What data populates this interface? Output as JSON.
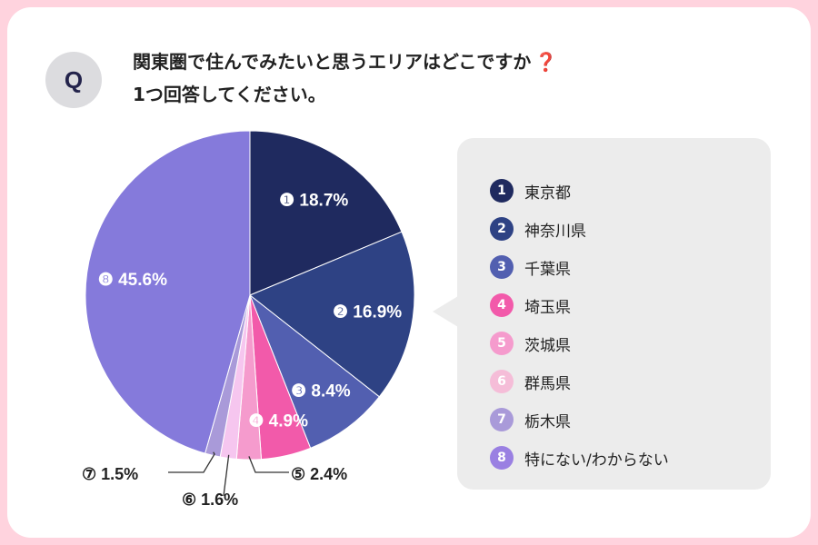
{
  "question": {
    "badge": "Q",
    "line1": "関東圏で住んでみたいと思うエリアはどこですか",
    "qmark": "❓",
    "line2": "1つ回答してください。"
  },
  "colors": {
    "background": "#ffd3de",
    "panel": "#ececec"
  },
  "chart_data": {
    "type": "pie",
    "direction": "clockwise from top",
    "series": [
      {
        "num": "1",
        "marker": "❶",
        "name": "東京都",
        "value": 18.7,
        "label": "18.7%",
        "color": "#1f2a5f",
        "legend_color": "#1f2a5f"
      },
      {
        "num": "2",
        "marker": "❷",
        "name": "神奈川県",
        "value": 16.9,
        "label": "16.9%",
        "color": "#2e4284",
        "legend_color": "#2e4284"
      },
      {
        "num": "3",
        "marker": "❸",
        "name": "千葉県",
        "value": 8.4,
        "label": "8.4%",
        "color": "#525fb0",
        "legend_color": "#525fb0"
      },
      {
        "num": "4",
        "marker": "❹",
        "name": "埼玉県",
        "value": 4.9,
        "label": "4.9%",
        "color": "#f25aaa",
        "legend_color": "#f25aaa"
      },
      {
        "num": "5",
        "marker": "⑤",
        "name": "茨城県",
        "value": 2.4,
        "label": "2.4%",
        "color": "#f59bcd",
        "legend_color": "#f59bcd"
      },
      {
        "num": "6",
        "marker": "⑥",
        "name": "群馬県",
        "value": 1.6,
        "label": "1.6%",
        "color": "#f6c6ef",
        "legend_color": "#f5bdd8"
      },
      {
        "num": "7",
        "marker": "⑦",
        "name": "栃木県",
        "value": 1.5,
        "label": "1.5%",
        "color": "#a99ad9",
        "legend_color": "#a99ad9"
      },
      {
        "num": "8",
        "marker": "❽",
        "name": "特にない/わからない",
        "value": 45.6,
        "label": "45.6%",
        "color": "#857adb",
        "legend_color": "#9a80e2"
      }
    ]
  }
}
